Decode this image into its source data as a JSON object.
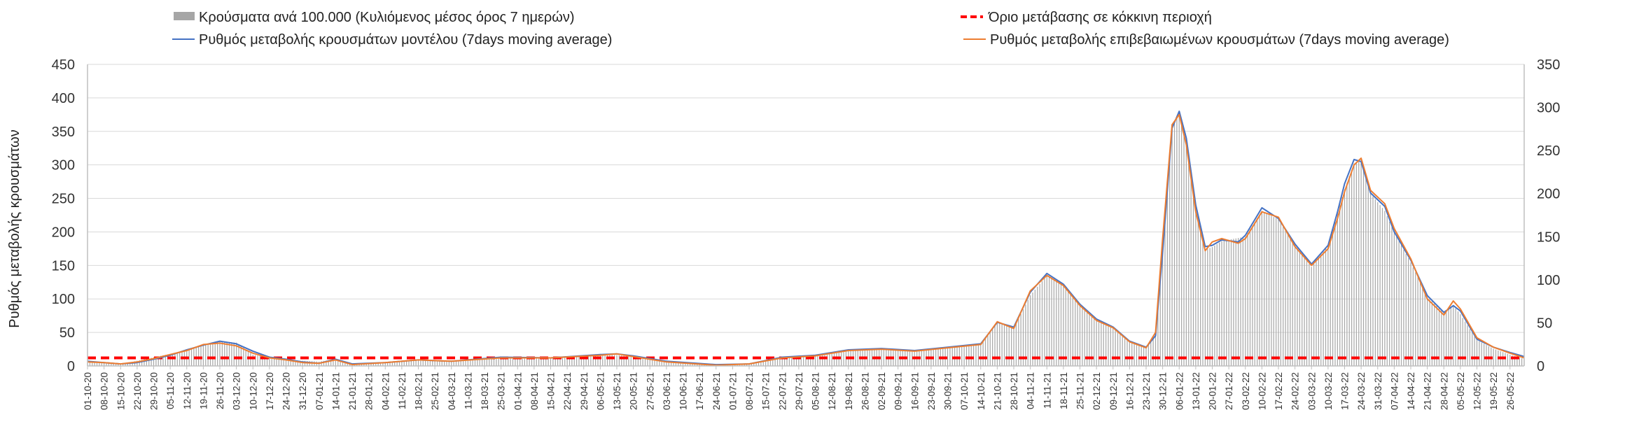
{
  "chart_data": {
    "type": "bar",
    "title": "",
    "ylabel": "Ρυθμός μεταβολής κρουσμάτων",
    "ylim": [
      0,
      450
    ],
    "y_ticks": [
      0,
      50,
      100,
      150,
      200,
      250,
      300,
      350,
      400,
      450
    ],
    "y2lim": [
      0,
      350
    ],
    "y2_ticks": [
      0,
      50,
      100,
      150,
      200,
      250,
      300,
      350
    ],
    "grid": true,
    "legend_position": "top",
    "x_start": "2020-10-01",
    "x_end": "2022-06-01",
    "x_tick_labels": [
      "01-10-20",
      "08-10-20",
      "15-10-20",
      "22-10-20",
      "29-10-20",
      "05-11-20",
      "12-11-20",
      "19-11-20",
      "26-11-20",
      "03-12-20",
      "10-12-20",
      "17-12-20",
      "24-12-20",
      "31-12-20",
      "07-01-21",
      "14-01-21",
      "21-01-21",
      "28-01-21",
      "04-02-21",
      "11-02-21",
      "18-02-21",
      "25-02-21",
      "04-03-21",
      "11-03-21",
      "18-03-21",
      "25-03-21",
      "01-04-21",
      "08-04-21",
      "15-04-21",
      "22-04-21",
      "29-04-21",
      "06-05-21",
      "13-05-21",
      "20-05-21",
      "27-05-21",
      "03-06-21",
      "10-06-21",
      "17-06-21",
      "24-06-21",
      "01-07-21",
      "08-07-21",
      "15-07-21",
      "22-07-21",
      "29-07-21",
      "05-08-21",
      "12-08-21",
      "19-08-21",
      "26-08-21",
      "02-09-21",
      "09-09-21",
      "16-09-21",
      "23-09-21",
      "30-09-21",
      "07-10-21",
      "14-10-21",
      "21-10-21",
      "28-10-21",
      "04-11-21",
      "11-11-21",
      "18-11-21",
      "25-11-21",
      "02-12-21",
      "09-12-21",
      "16-12-21",
      "23-12-21",
      "30-12-21",
      "06-01-22",
      "13-01-22",
      "20-01-22",
      "27-01-22",
      "03-02-22",
      "10-02-22",
      "17-02-22",
      "24-02-22",
      "03-03-22",
      "10-03-22",
      "17-03-22",
      "24-03-22",
      "31-03-22",
      "07-04-22",
      "14-04-22",
      "21-04-22",
      "28-04-22",
      "05-05-22",
      "12-05-22",
      "19-05-22",
      "26-05-22"
    ],
    "series": [
      {
        "name": "Κρούσματα ανά 100.000 (Κυλιόμενος μέσος όρος 7 ημερών)",
        "kind": "bar",
        "axis": "right",
        "color": "#a6a6a6",
        "points": [
          [
            "2020-10-01",
            6
          ],
          [
            "2020-10-15",
            2
          ],
          [
            "2020-10-29",
            10
          ],
          [
            "2020-11-12",
            18
          ],
          [
            "2020-11-26",
            29
          ],
          [
            "2020-12-03",
            27
          ],
          [
            "2020-12-10",
            13
          ],
          [
            "2020-12-24",
            7
          ],
          [
            "2021-01-07",
            5
          ],
          [
            "2021-01-14",
            8
          ],
          [
            "2021-01-21",
            2
          ],
          [
            "2021-02-04",
            4
          ],
          [
            "2021-02-18",
            7
          ],
          [
            "2021-03-04",
            6
          ],
          [
            "2021-03-25",
            10
          ],
          [
            "2021-04-15",
            9
          ],
          [
            "2021-05-06",
            14
          ],
          [
            "2021-05-20",
            11
          ],
          [
            "2021-06-10",
            4
          ],
          [
            "2021-06-24",
            1
          ],
          [
            "2021-07-08",
            2
          ],
          [
            "2021-07-22",
            10
          ],
          [
            "2021-08-05",
            12
          ],
          [
            "2021-08-19",
            18
          ],
          [
            "2021-09-02",
            20
          ],
          [
            "2021-09-16",
            18
          ],
          [
            "2021-09-30",
            21
          ],
          [
            "2021-10-14",
            25
          ],
          [
            "2021-10-21",
            50
          ],
          [
            "2021-10-28",
            44
          ],
          [
            "2021-11-04",
            82
          ],
          [
            "2021-11-11",
            105
          ],
          [
            "2021-11-18",
            93
          ],
          [
            "2021-11-25",
            70
          ],
          [
            "2021-12-02",
            53
          ],
          [
            "2021-12-09",
            44
          ],
          [
            "2021-12-16",
            28
          ],
          [
            "2021-12-23",
            22
          ],
          [
            "2021-12-27",
            35
          ],
          [
            "2021-12-30",
            140
          ],
          [
            "2022-01-03",
            275
          ],
          [
            "2022-01-06",
            295
          ],
          [
            "2022-01-09",
            260
          ],
          [
            "2022-01-13",
            185
          ],
          [
            "2022-01-17",
            135
          ],
          [
            "2022-01-20",
            138
          ],
          [
            "2022-01-24",
            145
          ],
          [
            "2022-02-03",
            150
          ],
          [
            "2022-02-10",
            180
          ],
          [
            "2022-02-17",
            170
          ],
          [
            "2022-02-24",
            140
          ],
          [
            "2022-03-03",
            115
          ],
          [
            "2022-03-10",
            140
          ],
          [
            "2022-03-17",
            205
          ],
          [
            "2022-03-21",
            235
          ],
          [
            "2022-03-24",
            240
          ],
          [
            "2022-03-28",
            200
          ],
          [
            "2022-04-03",
            180
          ],
          [
            "2022-04-07",
            155
          ],
          [
            "2022-04-14",
            120
          ],
          [
            "2022-04-21",
            80
          ],
          [
            "2022-04-28",
            62
          ],
          [
            "2022-05-02",
            70
          ],
          [
            "2022-05-05",
            60
          ],
          [
            "2022-05-12",
            30
          ],
          [
            "2022-05-19",
            20
          ],
          [
            "2022-05-26",
            13
          ],
          [
            "2022-06-01",
            8
          ]
        ]
      },
      {
        "name": "Όριο μετάβασης σε κόκκινη περιοχή",
        "kind": "dashed-line",
        "axis": "left",
        "color": "#ff0000",
        "value": 12
      },
      {
        "name": "Ρυθμός μεταβολής κρουσμάτων μοντέλου (7days moving average)",
        "kind": "line",
        "axis": "left",
        "color": "#4472c4",
        "points": [
          [
            "2020-10-01",
            7
          ],
          [
            "2020-10-08",
            5
          ],
          [
            "2020-10-15",
            3
          ],
          [
            "2020-10-22",
            5
          ],
          [
            "2020-10-29",
            10
          ],
          [
            "2020-11-05",
            16
          ],
          [
            "2020-11-12",
            24
          ],
          [
            "2020-11-19",
            31
          ],
          [
            "2020-11-26",
            37
          ],
          [
            "2020-12-03",
            33
          ],
          [
            "2020-12-10",
            22
          ],
          [
            "2020-12-17",
            13
          ],
          [
            "2020-12-24",
            10
          ],
          [
            "2020-12-31",
            6
          ],
          [
            "2021-01-07",
            4
          ],
          [
            "2021-01-14",
            10
          ],
          [
            "2021-01-21",
            3
          ],
          [
            "2021-02-04",
            5
          ],
          [
            "2021-02-18",
            9
          ],
          [
            "2021-03-04",
            7
          ],
          [
            "2021-03-25",
            13
          ],
          [
            "2021-04-15",
            12
          ],
          [
            "2021-05-06",
            17
          ],
          [
            "2021-05-13",
            18
          ],
          [
            "2021-05-20",
            15
          ],
          [
            "2021-06-03",
            7
          ],
          [
            "2021-06-24",
            2
          ],
          [
            "2021-07-08",
            3
          ],
          [
            "2021-07-22",
            13
          ],
          [
            "2021-08-05",
            16
          ],
          [
            "2021-08-19",
            24
          ],
          [
            "2021-09-02",
            26
          ],
          [
            "2021-09-16",
            23
          ],
          [
            "2021-09-30",
            28
          ],
          [
            "2021-10-14",
            33
          ],
          [
            "2021-10-21",
            65
          ],
          [
            "2021-10-28",
            58
          ],
          [
            "2021-11-04",
            110
          ],
          [
            "2021-11-11",
            138
          ],
          [
            "2021-11-18",
            122
          ],
          [
            "2021-11-25",
            92
          ],
          [
            "2021-12-02",
            70
          ],
          [
            "2021-12-09",
            58
          ],
          [
            "2021-12-16",
            37
          ],
          [
            "2021-12-23",
            28
          ],
          [
            "2021-12-27",
            45
          ],
          [
            "2021-12-30",
            170
          ],
          [
            "2022-01-03",
            355
          ],
          [
            "2022-01-06",
            380
          ],
          [
            "2022-01-09",
            340
          ],
          [
            "2022-01-13",
            240
          ],
          [
            "2022-01-17",
            178
          ],
          [
            "2022-01-20",
            180
          ],
          [
            "2022-01-24",
            188
          ],
          [
            "2022-01-31",
            185
          ],
          [
            "2022-02-03",
            195
          ],
          [
            "2022-02-10",
            236
          ],
          [
            "2022-02-17",
            220
          ],
          [
            "2022-02-24",
            182
          ],
          [
            "2022-03-03",
            152
          ],
          [
            "2022-03-10",
            180
          ],
          [
            "2022-03-14",
            230
          ],
          [
            "2022-03-17",
            272
          ],
          [
            "2022-03-21",
            308
          ],
          [
            "2022-03-24",
            305
          ],
          [
            "2022-03-28",
            258
          ],
          [
            "2022-04-03",
            238
          ],
          [
            "2022-04-07",
            200
          ],
          [
            "2022-04-14",
            158
          ],
          [
            "2022-04-21",
            105
          ],
          [
            "2022-04-28",
            80
          ],
          [
            "2022-05-02",
            90
          ],
          [
            "2022-05-05",
            82
          ],
          [
            "2022-05-12",
            40
          ],
          [
            "2022-05-19",
            28
          ],
          [
            "2022-05-26",
            20
          ],
          [
            "2022-06-01",
            14
          ]
        ]
      },
      {
        "name": "Ρυθμός μεταβολής επιβεβαιωμένων κρουσμάτων (7days moving average)",
        "kind": "line",
        "axis": "left",
        "color": "#ed7d31",
        "points": [
          [
            "2020-10-01",
            6
          ],
          [
            "2020-10-08",
            5
          ],
          [
            "2020-10-15",
            3
          ],
          [
            "2020-10-22",
            6
          ],
          [
            "2020-10-29",
            11
          ],
          [
            "2020-11-05",
            17
          ],
          [
            "2020-11-12",
            23
          ],
          [
            "2020-11-19",
            32
          ],
          [
            "2020-11-26",
            34
          ],
          [
            "2020-12-03",
            30
          ],
          [
            "2020-12-10",
            19
          ],
          [
            "2020-12-17",
            12
          ],
          [
            "2020-12-24",
            9
          ],
          [
            "2020-12-31",
            5
          ],
          [
            "2021-01-07",
            4
          ],
          [
            "2021-01-14",
            9
          ],
          [
            "2021-01-21",
            2
          ],
          [
            "2021-02-04",
            5
          ],
          [
            "2021-02-18",
            9
          ],
          [
            "2021-03-04",
            7
          ],
          [
            "2021-03-25",
            12
          ],
          [
            "2021-04-15",
            12
          ],
          [
            "2021-05-06",
            16
          ],
          [
            "2021-05-13",
            18
          ],
          [
            "2021-05-20",
            14
          ],
          [
            "2021-06-03",
            6
          ],
          [
            "2021-06-24",
            1
          ],
          [
            "2021-07-08",
            3
          ],
          [
            "2021-07-22",
            12
          ],
          [
            "2021-08-05",
            15
          ],
          [
            "2021-08-19",
            23
          ],
          [
            "2021-09-02",
            25
          ],
          [
            "2021-09-16",
            22
          ],
          [
            "2021-09-30",
            27
          ],
          [
            "2021-10-14",
            32
          ],
          [
            "2021-10-21",
            66
          ],
          [
            "2021-10-28",
            56
          ],
          [
            "2021-11-04",
            112
          ],
          [
            "2021-11-11",
            135
          ],
          [
            "2021-11-18",
            120
          ],
          [
            "2021-11-25",
            90
          ],
          [
            "2021-12-02",
            68
          ],
          [
            "2021-12-09",
            57
          ],
          [
            "2021-12-16",
            36
          ],
          [
            "2021-12-23",
            27
          ],
          [
            "2021-12-27",
            50
          ],
          [
            "2021-12-30",
            190
          ],
          [
            "2022-01-03",
            360
          ],
          [
            "2022-01-06",
            375
          ],
          [
            "2022-01-09",
            330
          ],
          [
            "2022-01-13",
            230
          ],
          [
            "2022-01-17",
            172
          ],
          [
            "2022-01-20",
            185
          ],
          [
            "2022-01-24",
            190
          ],
          [
            "2022-01-31",
            183
          ],
          [
            "2022-02-03",
            190
          ],
          [
            "2022-02-10",
            230
          ],
          [
            "2022-02-17",
            222
          ],
          [
            "2022-02-24",
            178
          ],
          [
            "2022-03-03",
            150
          ],
          [
            "2022-03-10",
            175
          ],
          [
            "2022-03-14",
            220
          ],
          [
            "2022-03-17",
            260
          ],
          [
            "2022-03-21",
            300
          ],
          [
            "2022-03-24",
            310
          ],
          [
            "2022-03-28",
            262
          ],
          [
            "2022-04-03",
            242
          ],
          [
            "2022-04-07",
            205
          ],
          [
            "2022-04-14",
            160
          ],
          [
            "2022-04-21",
            100
          ],
          [
            "2022-04-28",
            76
          ],
          [
            "2022-05-02",
            97
          ],
          [
            "2022-05-05",
            85
          ],
          [
            "2022-05-12",
            42
          ],
          [
            "2022-05-19",
            28
          ],
          [
            "2022-05-26",
            19
          ],
          [
            "2022-06-01",
            12
          ]
        ]
      }
    ]
  }
}
